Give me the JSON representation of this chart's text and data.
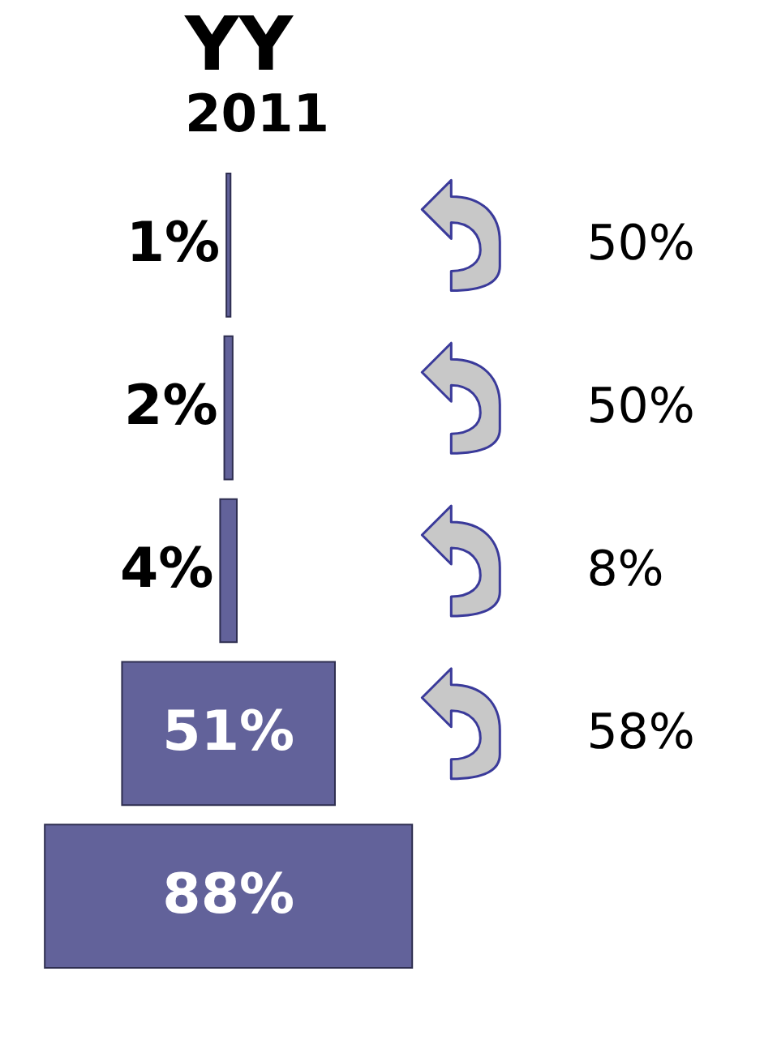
{
  "chart_data": {
    "type": "other",
    "title": "YY",
    "subtitle": "2011",
    "categories": [
      null,
      null,
      null,
      null,
      null
    ],
    "values": [
      1,
      2,
      4,
      51,
      88
    ],
    "value_labels": [
      "1%",
      "2%",
      "4%",
      "51%",
      "88%"
    ],
    "color": "#62629a",
    "annotations": [
      "50%",
      "50%",
      "8%",
      "58%"
    ]
  }
}
